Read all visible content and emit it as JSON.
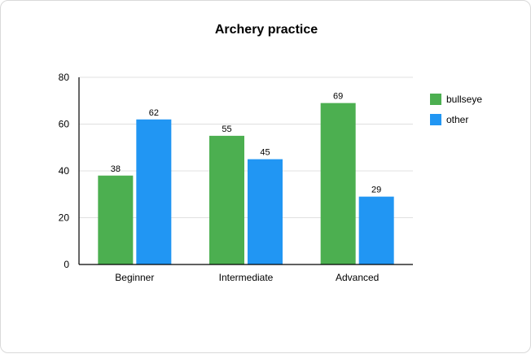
{
  "chart_data": {
    "type": "bar",
    "title": "Archery practice",
    "xlabel": "",
    "ylabel": "",
    "categories": [
      "Beginner",
      "Intermediate",
      "Advanced"
    ],
    "series": [
      {
        "name": "bullseye",
        "color": "#4caf50",
        "values": [
          38,
          55,
          69
        ]
      },
      {
        "name": "other",
        "color": "#2196f3",
        "values": [
          62,
          45,
          29
        ]
      }
    ],
    "ylim": [
      0,
      80
    ],
    "yticks": [
      0,
      20,
      40,
      60,
      80
    ],
    "grid": true,
    "legend_position": "right",
    "data_labels": true
  }
}
